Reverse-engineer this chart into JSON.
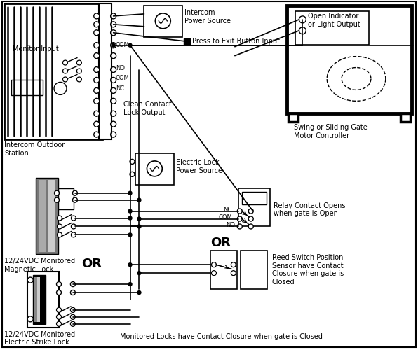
{
  "bg_color": "#ffffff",
  "line_color": "#000000",
  "text_color": "#000000",
  "labels": {
    "monitor_input": "Monitor Input",
    "intercom_outdoor": "Intercom Outdoor\nStation",
    "intercom_power": "Intercom\nPower Source",
    "press_to_exit": "Press to Exit Button Input",
    "clean_contact": "Clean Contact\nLock Output",
    "electric_lock_power": "Electric Lock\nPower Source",
    "magnetic_lock": "12/24VDC Monitored\nMagnetic Lock",
    "electric_strike": "12/24VDC Monitored\nElectric Strike Lock",
    "gate_motor": "Swing or Sliding Gate\nMotor Controller",
    "open_indicator": "Open Indicator\nor Light Output",
    "relay_contact": "Relay Contact Opens\nwhen gate is Open",
    "reed_switch": "Reed Switch Position\nSensor have Contact\nClosure when gate is\nClosed",
    "or1": "OR",
    "or2": "OR",
    "nc": "NC",
    "com_lbl": "COM",
    "no": "NO",
    "bottom_note": "Monitored Locks have Contact Closure when gate is Closed"
  }
}
